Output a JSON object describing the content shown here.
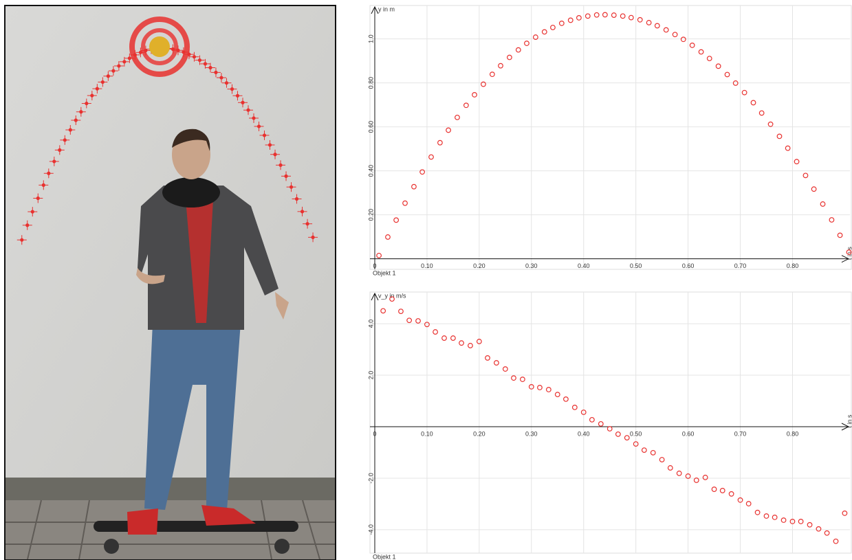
{
  "chart_data": [
    {
      "type": "scatter",
      "y_label": "y in m",
      "x_label": "t in s",
      "series_name": "Objekt 1",
      "color": "#e8312f",
      "grid": true,
      "x": [
        0.008,
        0.025,
        0.041,
        0.058,
        0.075,
        0.091,
        0.108,
        0.125,
        0.141,
        0.158,
        0.175,
        0.191,
        0.208,
        0.225,
        0.241,
        0.258,
        0.275,
        0.291,
        0.308,
        0.325,
        0.341,
        0.358,
        0.375,
        0.391,
        0.408,
        0.425,
        0.441,
        0.458,
        0.475,
        0.491,
        0.508,
        0.525,
        0.541,
        0.558,
        0.575,
        0.591,
        0.608,
        0.625,
        0.641,
        0.658,
        0.675,
        0.691,
        0.708,
        0.725,
        0.741,
        0.758,
        0.775,
        0.791,
        0.808,
        0.825,
        0.841,
        0.858,
        0.875,
        0.891,
        0.908
      ],
      "values": [
        0.015,
        0.099,
        0.176,
        0.253,
        0.328,
        0.395,
        0.463,
        0.528,
        0.585,
        0.643,
        0.698,
        0.746,
        0.794,
        0.839,
        0.878,
        0.916,
        0.95,
        0.98,
        1.008,
        1.032,
        1.052,
        1.071,
        1.085,
        1.096,
        1.104,
        1.109,
        1.11,
        1.108,
        1.104,
        1.097,
        1.087,
        1.074,
        1.06,
        1.041,
        1.02,
        0.998,
        0.971,
        0.941,
        0.911,
        0.876,
        0.838,
        0.799,
        0.756,
        0.71,
        0.663,
        0.612,
        0.557,
        0.503,
        0.442,
        0.379,
        0.317,
        0.249,
        0.177,
        0.107,
        0.03
      ],
      "xlim": [
        0,
        0.91
      ],
      "ylim": [
        -0.048,
        1.152
      ],
      "xticks": [
        0,
        {
          "value": 0.1,
          "label": "0.10"
        },
        {
          "value": 0.2,
          "label": "0.20"
        },
        {
          "value": 0.3,
          "label": "0.30"
        },
        {
          "value": 0.4,
          "label": "0.40"
        },
        {
          "value": 0.5,
          "label": "0.50"
        },
        {
          "value": 0.6,
          "label": "0.60"
        },
        {
          "value": 0.7,
          "label": "0.70"
        },
        {
          "value": 0.8,
          "label": "0.80"
        }
      ],
      "yticks": [
        {
          "value": 0.2,
          "label": "0.20"
        },
        {
          "value": 0.4,
          "label": "0.40"
        },
        {
          "value": 0.6,
          "label": "0.60"
        },
        {
          "value": 0.8,
          "label": "0.80"
        },
        {
          "value": 1,
          "label": "1.0"
        }
      ]
    },
    {
      "type": "scatter",
      "y_label": "v_y in m/s",
      "x_label": "t in s",
      "series_name": "Objekt 1",
      "color": "#e8312f",
      "grid": true,
      "x": [
        0.016,
        0.033,
        0.05,
        0.066,
        0.083,
        0.1,
        0.116,
        0.133,
        0.15,
        0.166,
        0.183,
        0.2,
        0.216,
        0.233,
        0.25,
        0.266,
        0.283,
        0.3,
        0.316,
        0.333,
        0.35,
        0.366,
        0.383,
        0.4,
        0.416,
        0.433,
        0.45,
        0.466,
        0.483,
        0.5,
        0.516,
        0.533,
        0.55,
        0.566,
        0.583,
        0.6,
        0.616,
        0.633,
        0.65,
        0.666,
        0.683,
        0.7,
        0.716,
        0.733,
        0.75,
        0.766,
        0.783,
        0.8,
        0.816,
        0.833,
        0.85,
        0.866,
        0.883,
        0.9
      ],
      "values": [
        4.5,
        4.96,
        4.48,
        4.13,
        4.11,
        3.97,
        3.68,
        3.44,
        3.44,
        3.25,
        3.15,
        3.31,
        2.67,
        2.48,
        2.24,
        1.89,
        1.84,
        1.55,
        1.52,
        1.44,
        1.25,
        1.07,
        0.75,
        0.56,
        0.27,
        0.11,
        -0.08,
        -0.29,
        -0.43,
        -0.67,
        -0.91,
        -1.01,
        -1.28,
        -1.6,
        -1.81,
        -1.92,
        -2.08,
        -1.97,
        -2.43,
        -2.48,
        -2.61,
        -2.85,
        -2.99,
        -3.33,
        -3.47,
        -3.52,
        -3.63,
        -3.68,
        -3.68,
        -3.81,
        -3.97,
        -4.13,
        -4.45,
        -3.36
      ],
      "xlim": [
        0,
        0.91
      ],
      "ylim": [
        -4.91,
        5.23
      ],
      "xticks": [
        0,
        {
          "value": 0.1,
          "label": "0.10"
        },
        {
          "value": 0.2,
          "label": "0.20"
        },
        {
          "value": 0.3,
          "label": "0.30"
        },
        {
          "value": 0.4,
          "label": "0.40"
        },
        {
          "value": 0.5,
          "label": "0.50"
        },
        {
          "value": 0.6,
          "label": "0.60"
        },
        {
          "value": 0.7,
          "label": "0.70"
        },
        {
          "value": 0.8,
          "label": "0.80"
        }
      ],
      "yticks": [
        {
          "value": 4,
          "label": "4.0"
        },
        {
          "value": 2,
          "label": "2.0"
        },
        {
          "value": -2,
          "label": "-2.0"
        },
        {
          "value": -4,
          "label": "-4.0"
        }
      ]
    }
  ]
}
